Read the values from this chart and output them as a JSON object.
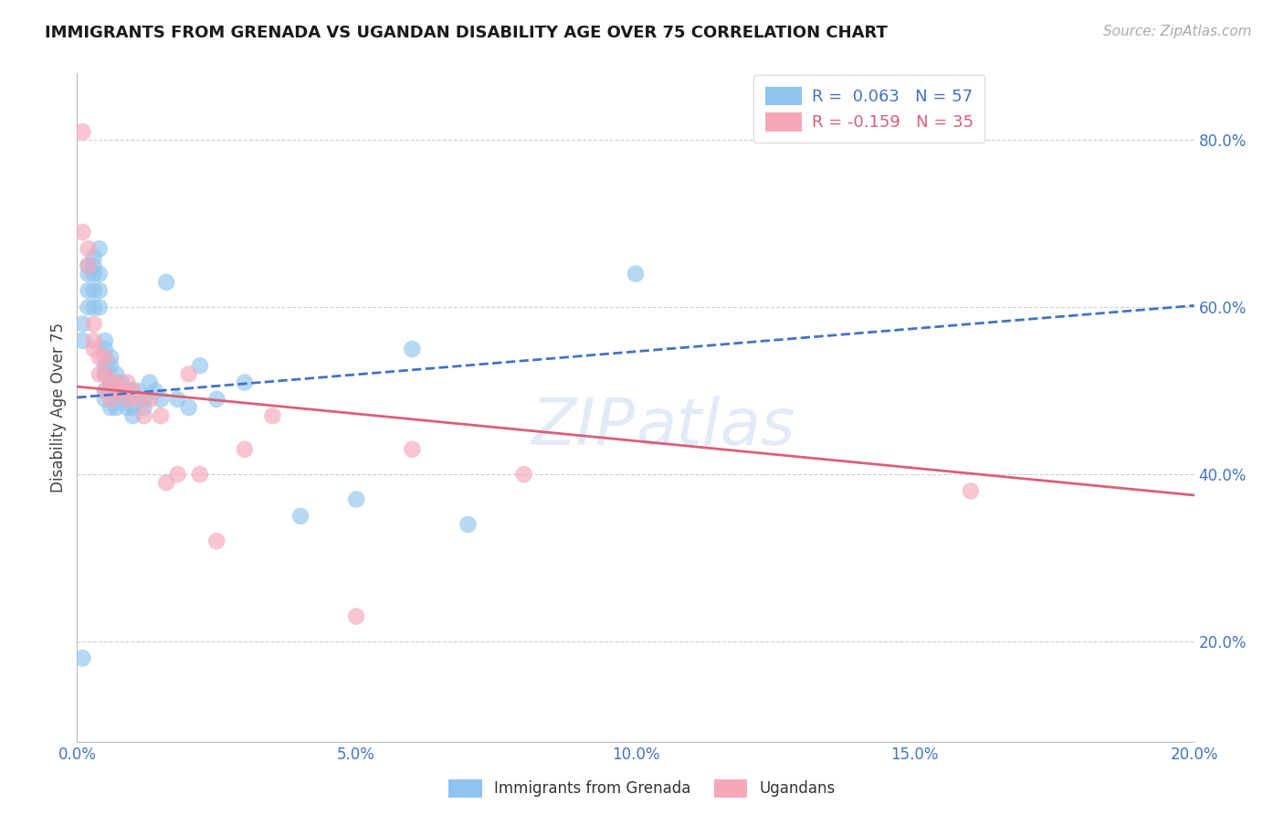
{
  "title": "IMMIGRANTS FROM GRENADA VS UGANDAN DISABILITY AGE OVER 75 CORRELATION CHART",
  "source": "Source: ZipAtlas.com",
  "ylabel": "Disability Age Over 75",
  "xlim": [
    0.0,
    0.2
  ],
  "ylim": [
    0.08,
    0.88
  ],
  "xticks": [
    0.0,
    0.05,
    0.1,
    0.15,
    0.2
  ],
  "xtick_labels": [
    "0.0%",
    "5.0%",
    "10.0%",
    "15.0%",
    "20.0%"
  ],
  "yticks": [
    0.2,
    0.4,
    0.6,
    0.8
  ],
  "ytick_labels": [
    "20.0%",
    "40.0%",
    "60.0%",
    "80.0%"
  ],
  "blue_R": 0.063,
  "blue_N": 57,
  "pink_R": -0.159,
  "pink_N": 35,
  "blue_color": "#8FC4EE",
  "pink_color": "#F4A8BA",
  "blue_line_color": "#4472C4",
  "pink_line_color": "#D95F7A",
  "legend_blue_label": "Immigrants from Grenada",
  "legend_pink_label": "Ugandans",
  "background_color": "#FFFFFF",
  "grid_color": "#C8D0DC",
  "blue_scatter_x": [
    0.001,
    0.001,
    0.001,
    0.002,
    0.002,
    0.002,
    0.002,
    0.003,
    0.003,
    0.003,
    0.003,
    0.003,
    0.004,
    0.004,
    0.004,
    0.004,
    0.005,
    0.005,
    0.005,
    0.005,
    0.005,
    0.005,
    0.006,
    0.006,
    0.006,
    0.006,
    0.006,
    0.007,
    0.007,
    0.007,
    0.007,
    0.008,
    0.008,
    0.008,
    0.009,
    0.009,
    0.009,
    0.01,
    0.01,
    0.01,
    0.011,
    0.012,
    0.012,
    0.013,
    0.014,
    0.015,
    0.016,
    0.018,
    0.02,
    0.022,
    0.025,
    0.03,
    0.04,
    0.05,
    0.06,
    0.07,
    0.1
  ],
  "blue_scatter_y": [
    0.18,
    0.56,
    0.58,
    0.65,
    0.64,
    0.62,
    0.6,
    0.66,
    0.65,
    0.64,
    0.62,
    0.6,
    0.67,
    0.64,
    0.62,
    0.6,
    0.56,
    0.55,
    0.53,
    0.52,
    0.5,
    0.49,
    0.54,
    0.53,
    0.51,
    0.5,
    0.48,
    0.52,
    0.51,
    0.5,
    0.48,
    0.51,
    0.5,
    0.49,
    0.5,
    0.49,
    0.48,
    0.5,
    0.48,
    0.47,
    0.5,
    0.49,
    0.48,
    0.51,
    0.5,
    0.49,
    0.63,
    0.49,
    0.48,
    0.53,
    0.49,
    0.51,
    0.35,
    0.37,
    0.55,
    0.34,
    0.64
  ],
  "pink_scatter_x": [
    0.001,
    0.001,
    0.002,
    0.002,
    0.003,
    0.003,
    0.003,
    0.004,
    0.004,
    0.005,
    0.005,
    0.005,
    0.006,
    0.006,
    0.007,
    0.007,
    0.008,
    0.009,
    0.009,
    0.01,
    0.011,
    0.012,
    0.013,
    0.015,
    0.016,
    0.018,
    0.02,
    0.022,
    0.025,
    0.03,
    0.035,
    0.05,
    0.06,
    0.16,
    0.08
  ],
  "pink_scatter_y": [
    0.81,
    0.69,
    0.67,
    0.65,
    0.58,
    0.56,
    0.55,
    0.54,
    0.52,
    0.54,
    0.52,
    0.5,
    0.51,
    0.49,
    0.51,
    0.5,
    0.5,
    0.51,
    0.49,
    0.5,
    0.49,
    0.47,
    0.49,
    0.47,
    0.39,
    0.4,
    0.52,
    0.4,
    0.32,
    0.43,
    0.47,
    0.23,
    0.43,
    0.38,
    0.4
  ],
  "blue_trend_x": [
    0.0,
    0.2
  ],
  "blue_trend_y": [
    0.492,
    0.602
  ],
  "pink_trend_x": [
    0.0,
    0.2
  ],
  "pink_trend_y": [
    0.505,
    0.375
  ]
}
